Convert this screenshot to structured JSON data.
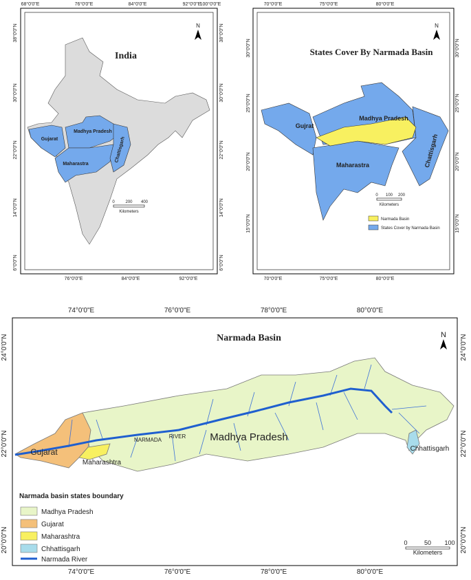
{
  "panels": [
    {
      "title": "India",
      "north": "N",
      "top_lon": [
        "68°0'0\"E",
        "76°0'0\"E",
        "84°0'0\"E",
        "92°0'0\"E",
        "100°0'0\"E"
      ],
      "bottom_lon": [
        "76°0'0\"E",
        "84°0'0\"E",
        "92°0'0\"E"
      ],
      "left_lat": [
        "38°0'0\"N",
        "30°0'0\"N",
        "22°0'0\"N",
        "14°0'0\"N",
        "6°0'0\"N"
      ],
      "right_lat": [
        "38°0'0\"N",
        "30°0'0\"N",
        "22°0'0\"N",
        "14°0'0\"N",
        "6°0'0\"N"
      ],
      "labels": [
        "Gujarat",
        "Madhya Pradesh",
        "Maharastra",
        "Chattisgarh"
      ],
      "scale": {
        "ticks": [
          "0",
          "200",
          "400"
        ],
        "unit": "Kilometers"
      }
    },
    {
      "title": "States Cover By Narmada Basin",
      "north": "N",
      "top_lon": [
        "70°0'0\"E",
        "75°0'0\"E",
        "80°0'0\"E"
      ],
      "bottom_lon": [
        "70°0'0\"E",
        "75°0'0\"E",
        "80°0'0\"E"
      ],
      "left_lat": [
        "30°0'0\"N",
        "25°0'0\"N",
        "20°0'0\"N",
        "15°0'0\"N"
      ],
      "right_lat": [
        "30°0'0\"N",
        "25°0'0\"N",
        "20°0'0\"N",
        "15°0'0\"N"
      ],
      "labels": [
        "Gujrat",
        "Madhya Pradesh",
        "Maharastra",
        "Chattisgarh"
      ],
      "scale": {
        "ticks": [
          "0",
          "100",
          "200"
        ],
        "unit": "Kilometers"
      },
      "legend": [
        "Narmada Basin",
        "States Cover by Narmada Basin"
      ]
    },
    {
      "title": "Narmada Basin",
      "north": "N",
      "top_lon": [
        "74°0'0\"E",
        "76°0'0\"E",
        "78°0'0\"E",
        "80°0'0\"E"
      ],
      "bottom_lon": [
        "74°0'0\"E",
        "76°0'0\"E",
        "78°0'0\"E",
        "80°0'0\"E"
      ],
      "left_lat": [
        "24°0'0\"N",
        "22°0'0\"N",
        "20°0'0\"N"
      ],
      "right_lat": [
        "24°0'0\"N",
        "22°0'0\"N",
        "20°0'0\"N"
      ],
      "labels": [
        "Madhya Pradesh",
        "Gujarat",
        "Maharashtra",
        "Chhattisgarh",
        "NARMADA",
        "RIVER"
      ],
      "scale": {
        "ticks": [
          "0",
          "50",
          "100"
        ],
        "unit": "Kilometers"
      },
      "legend": {
        "title": "Narmada basin states boundary",
        "items": [
          "Madhya Pradesh",
          "Gujarat",
          "Maharashtra",
          "Chhattisgarh",
          "Narmada River"
        ]
      }
    }
  ]
}
